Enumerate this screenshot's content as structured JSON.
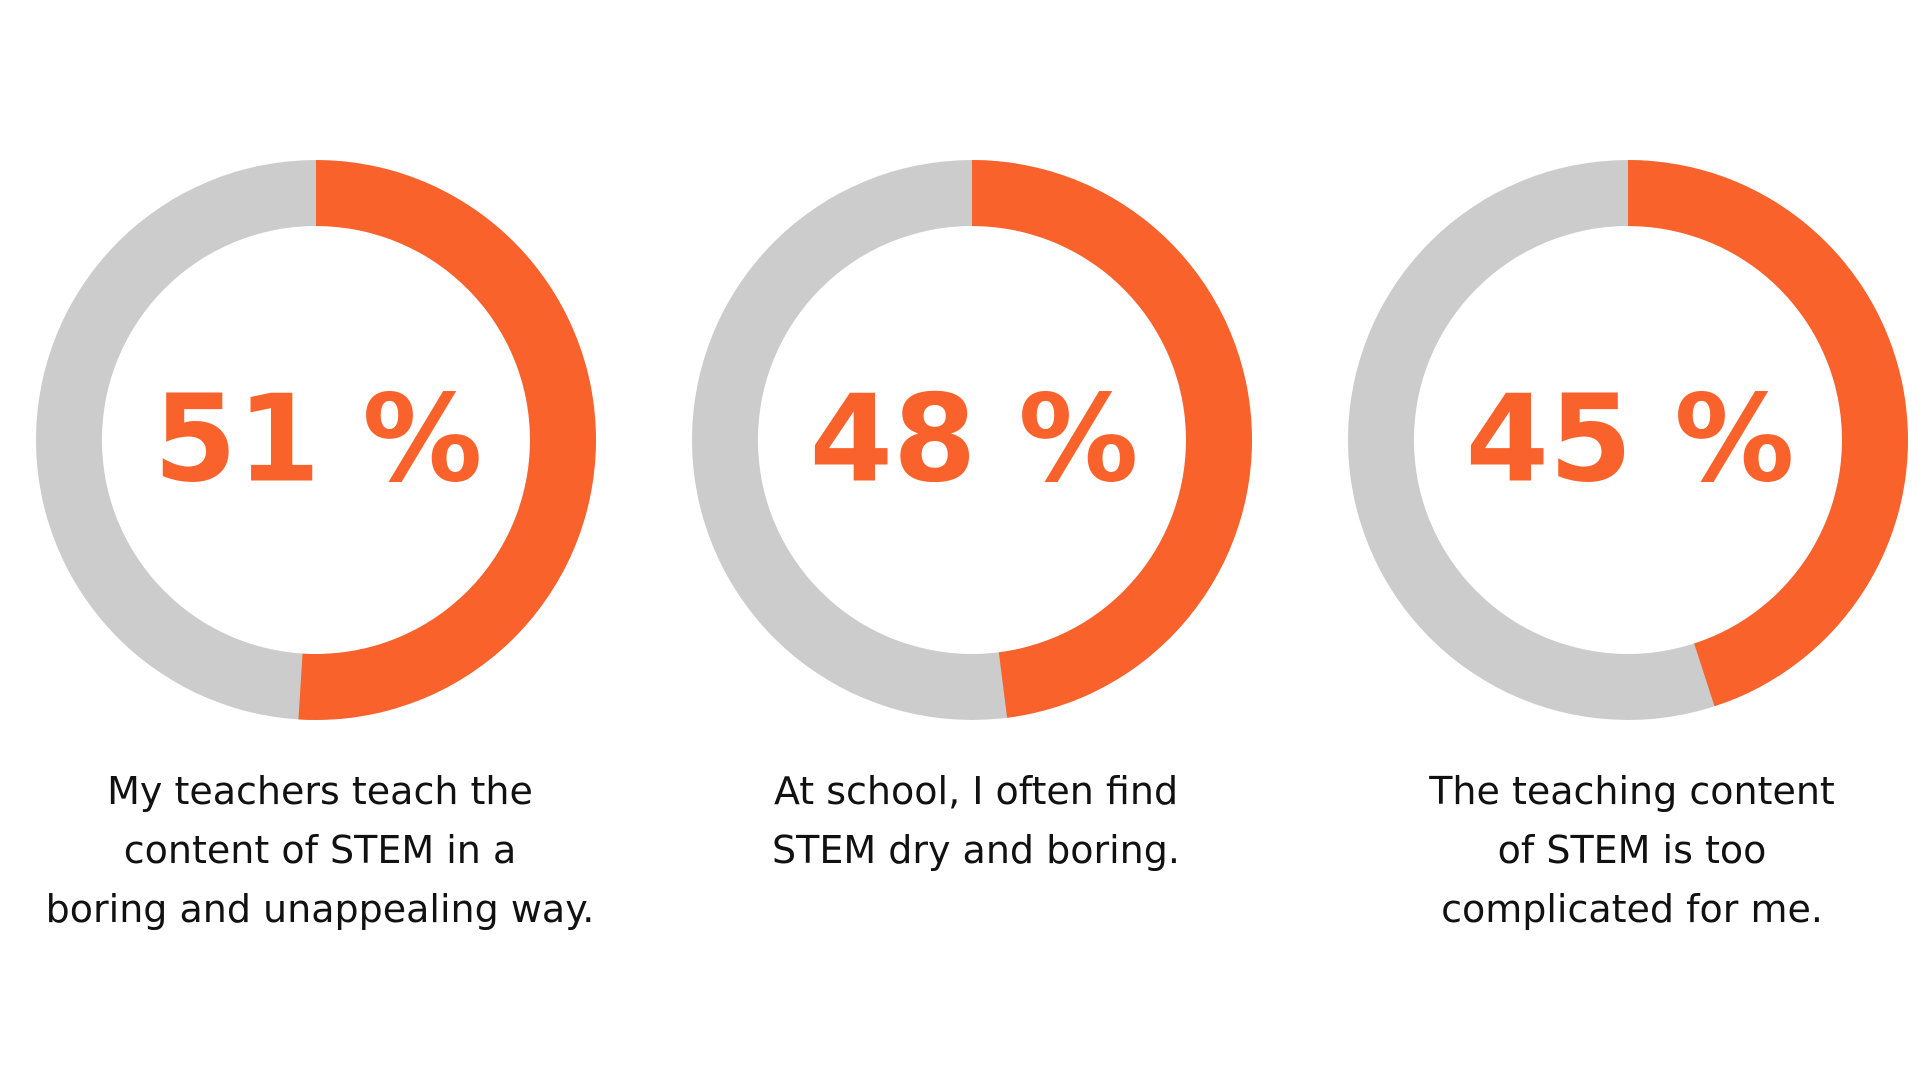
{
  "colors": {
    "accent": "#F9622B",
    "track": "#CCCCCC",
    "text": "#111111"
  },
  "chart_data": [
    {
      "type": "pie",
      "value": 51,
      "unit": "%",
      "label": "51 %",
      "caption_lines": [
        "My teachers teach the",
        "content of STEM in a",
        "boring and unappealing way."
      ]
    },
    {
      "type": "pie",
      "value": 48,
      "unit": "%",
      "label": "48 %",
      "caption_lines": [
        "At school, I often find",
        "STEM dry and boring."
      ]
    },
    {
      "type": "pie",
      "value": 45,
      "unit": "%",
      "label": "45 %",
      "caption_lines": [
        "The teaching content",
        "of STEM is too",
        "complicated for me."
      ]
    }
  ]
}
